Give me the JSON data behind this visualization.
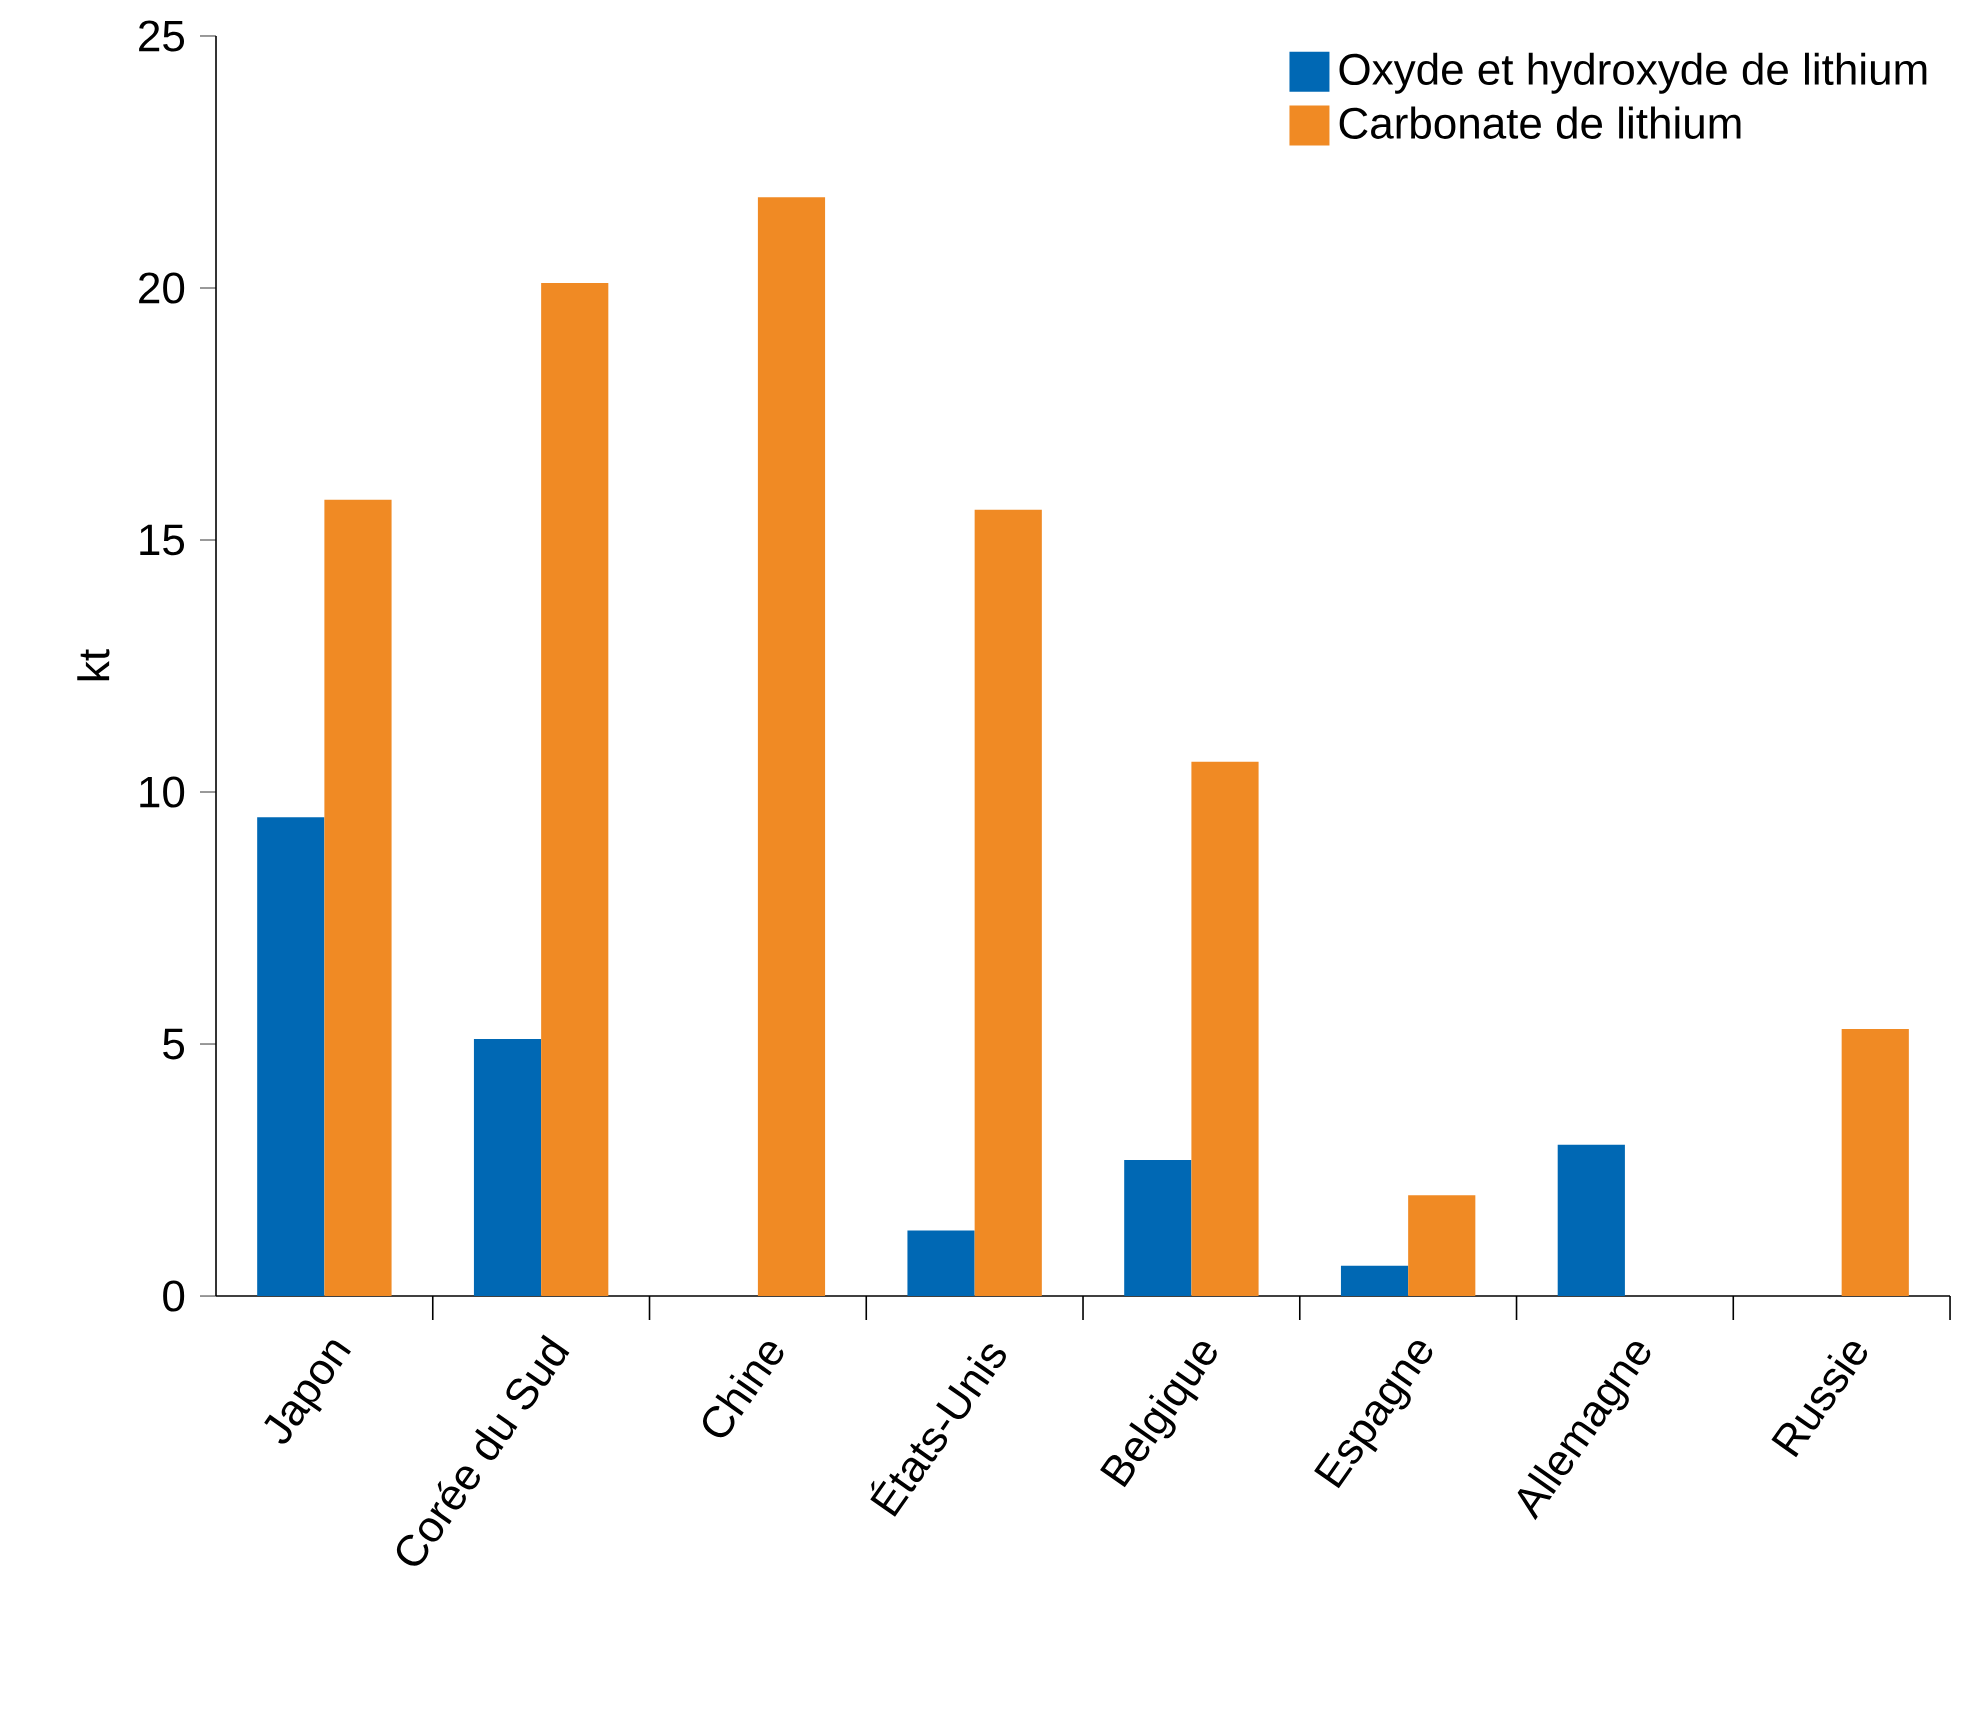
{
  "chart_data": {
    "type": "bar",
    "ylabel": "kt",
    "categories": [
      "Japon",
      "Corée du Sud",
      "Chine",
      "États-Unis",
      "Belgique",
      "Espagne",
      "Allemagne",
      "Russie"
    ],
    "series": [
      {
        "name": "Oxyde et hydroxyde de lithium",
        "color": "#0068b4",
        "values": [
          9.5,
          5.1,
          null,
          1.3,
          2.7,
          0.6,
          3.0,
          null
        ]
      },
      {
        "name": "Carbonate de lithium",
        "color": "#f08a24",
        "values": [
          15.8,
          20.1,
          21.8,
          15.6,
          10.6,
          2.0,
          null,
          5.3
        ]
      }
    ],
    "ylim": [
      0,
      25
    ],
    "yticks": [
      0,
      5,
      10,
      15,
      20,
      25
    ],
    "grid": false,
    "legend": "top right"
  }
}
